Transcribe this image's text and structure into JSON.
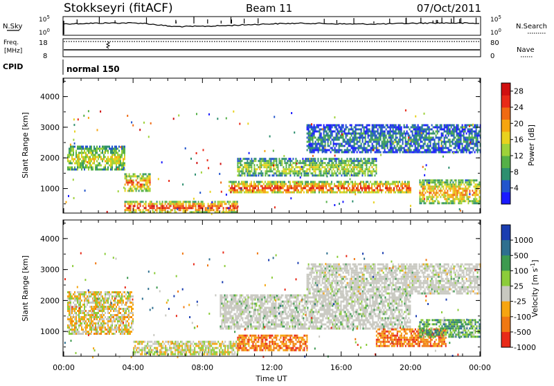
{
  "header": {
    "station": "Stokkseyri (fitACF)",
    "beam": "Beam 11",
    "date": "07/Oct/2011"
  },
  "nsky_panel": {
    "left_label": "N.Sky",
    "right_label": "N.Search",
    "left_ticks": [
      "10^5",
      "10^0"
    ],
    "right_ticks": [
      "10^5",
      "10^0"
    ]
  },
  "freq_panel": {
    "label_line1": "Freq.",
    "label_line2": "[MHz]",
    "left_ticks": [
      "18",
      "8"
    ],
    "right_ticks": [
      "80",
      "0"
    ],
    "right_label": "Nave"
  },
  "cpid_panel": {
    "label": "CPID",
    "mode": "normal 150"
  },
  "chart_data": [
    {
      "type": "heatmap",
      "name": "power",
      "ylabel": "Slant Range [km]",
      "xlabel": "",
      "ylim": [
        200,
        4600
      ],
      "yticks": [
        "1000",
        "2000",
        "3000",
        "4000"
      ],
      "xlim_hours": [
        0,
        24
      ],
      "colorbar": {
        "label": "Power [dB]",
        "ticks": [
          "4",
          "8",
          "12",
          "16",
          "20",
          "24",
          "28"
        ],
        "colors": [
          "#1a1aff",
          "#2255cc",
          "#2e8f6f",
          "#55b047",
          "#9ed23a",
          "#e8d21e",
          "#f6a510",
          "#f06a12",
          "#e82a18",
          "#d01010"
        ]
      },
      "bands": [
        {
          "t0": 0.2,
          "t1": 3.5,
          "r0": 1600,
          "r1": 2400,
          "level": 0.55
        },
        {
          "t0": 3.5,
          "t1": 5.0,
          "r0": 900,
          "r1": 1500,
          "level": 0.75
        },
        {
          "t0": 3.5,
          "t1": 10.0,
          "r0": 250,
          "r1": 600,
          "level": 0.9
        },
        {
          "t0": 9.5,
          "t1": 20.0,
          "r0": 850,
          "r1": 1250,
          "level": 0.85
        },
        {
          "t0": 10.0,
          "t1": 18.0,
          "r0": 1400,
          "r1": 2000,
          "level": 0.5
        },
        {
          "t0": 20.5,
          "t1": 24.0,
          "r0": 500,
          "r1": 1300,
          "level": 0.7
        },
        {
          "t0": 14.0,
          "t1": 24.0,
          "r0": 2200,
          "r1": 3100,
          "level": 0.25
        }
      ]
    },
    {
      "type": "heatmap",
      "name": "velocity",
      "ylabel": "Slant Range [km]",
      "xlabel": "Time UT",
      "ylim": [
        200,
        4600
      ],
      "yticks": [
        "1000",
        "2000",
        "3000",
        "4000"
      ],
      "xticks": [
        "00:00",
        "04:00",
        "08:00",
        "12:00",
        "16:00",
        "20:00",
        "00:00"
      ],
      "xlim_hours": [
        0,
        24
      ],
      "colorbar": {
        "label": "Velocity [m s^-1]",
        "ticks": [
          "1000",
          "500",
          "100",
          "25",
          "-25",
          "-100",
          "-500",
          "-1000"
        ],
        "colors": [
          "#1a3db0",
          "#2e6f8f",
          "#3d9a4f",
          "#8ccc3a",
          "#c8c8c0",
          "#f6a510",
          "#f07812",
          "#e82a18"
        ]
      },
      "bands": [
        {
          "t0": 0.2,
          "t1": 4.0,
          "r0": 900,
          "r1": 2300,
          "level": 0.6
        },
        {
          "t0": 4.0,
          "t1": 10.0,
          "r0": 250,
          "r1": 700,
          "level": 0.55
        },
        {
          "t0": 9.0,
          "t1": 20.0,
          "r0": 1100,
          "r1": 2200,
          "level": 0.45
        },
        {
          "t0": 10.0,
          "t1": 14.0,
          "r0": 400,
          "r1": 900,
          "level": 0.8
        },
        {
          "t0": 18.0,
          "t1": 22.0,
          "r0": 500,
          "r1": 1100,
          "level": 0.8
        },
        {
          "t0": 20.5,
          "t1": 24.0,
          "r0": 800,
          "r1": 1400,
          "level": 0.35
        },
        {
          "t0": 14.0,
          "t1": 24.0,
          "r0": 2200,
          "r1": 3200,
          "level": 0.5
        }
      ]
    }
  ]
}
